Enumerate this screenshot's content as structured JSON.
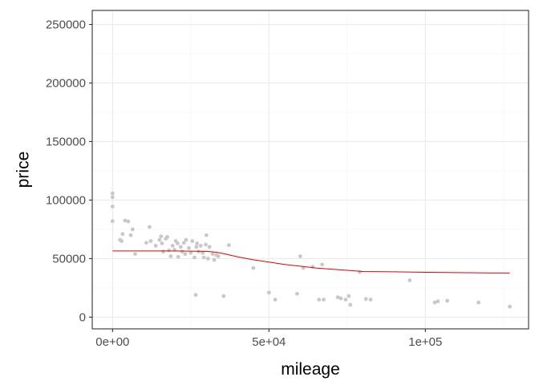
{
  "chart_data": {
    "type": "scatter",
    "xlabel": "mileage",
    "ylabel": "price",
    "xlim": [
      -6500,
      133000
    ],
    "ylim": [
      -10000,
      262000
    ],
    "x_ticks": [
      0,
      50000,
      100000
    ],
    "x_tick_labels": [
      "0e+00",
      "5e+04",
      "1e+05"
    ],
    "y_ticks": [
      0,
      50000,
      100000,
      150000,
      200000,
      250000
    ],
    "y_tick_labels": [
      "0",
      "50000",
      "100000",
      "150000",
      "200000",
      "250000"
    ],
    "x_minor_ticks": [
      25000,
      75000,
      125000
    ],
    "y_minor_ticks": [
      25000,
      75000,
      125000,
      175000,
      225000
    ],
    "grid": true,
    "theme": "bw",
    "colors": {
      "points": "#c8c8c8",
      "fit_line": "#e00000",
      "grid_major": "#ebebeb",
      "grid_minor": "#f5f5f5",
      "panel_border": "#333333"
    },
    "points": [
      {
        "x": 0,
        "y": 105800
      },
      {
        "x": 0,
        "y": 102500
      },
      {
        "x": 0,
        "y": 94500
      },
      {
        "x": 0,
        "y": 82000
      },
      {
        "x": 2400,
        "y": 66000
      },
      {
        "x": 2900,
        "y": 65000
      },
      {
        "x": 3200,
        "y": 71000
      },
      {
        "x": 4000,
        "y": 82500
      },
      {
        "x": 5000,
        "y": 81800
      },
      {
        "x": 5800,
        "y": 70000
      },
      {
        "x": 6400,
        "y": 75000
      },
      {
        "x": 7200,
        "y": 54000
      },
      {
        "x": 10800,
        "y": 63500
      },
      {
        "x": 11800,
        "y": 77000
      },
      {
        "x": 12200,
        "y": 65000
      },
      {
        "x": 13800,
        "y": 61000
      },
      {
        "x": 15000,
        "y": 66000
      },
      {
        "x": 15500,
        "y": 69000
      },
      {
        "x": 15800,
        "y": 63000
      },
      {
        "x": 16200,
        "y": 56000
      },
      {
        "x": 17000,
        "y": 67000
      },
      {
        "x": 17500,
        "y": 68500
      },
      {
        "x": 18000,
        "y": 57000
      },
      {
        "x": 18600,
        "y": 52000
      },
      {
        "x": 19200,
        "y": 61000
      },
      {
        "x": 19800,
        "y": 57500
      },
      {
        "x": 20200,
        "y": 65000
      },
      {
        "x": 20800,
        "y": 63000
      },
      {
        "x": 21000,
        "y": 51500
      },
      {
        "x": 21800,
        "y": 60000
      },
      {
        "x": 22200,
        "y": 56000
      },
      {
        "x": 22800,
        "y": 63500
      },
      {
        "x": 23200,
        "y": 54000
      },
      {
        "x": 23500,
        "y": 66000
      },
      {
        "x": 24400,
        "y": 59000
      },
      {
        "x": 25000,
        "y": 55000
      },
      {
        "x": 25500,
        "y": 65000
      },
      {
        "x": 26200,
        "y": 51000
      },
      {
        "x": 26800,
        "y": 60000
      },
      {
        "x": 27000,
        "y": 63000
      },
      {
        "x": 27500,
        "y": 56000
      },
      {
        "x": 28200,
        "y": 61000
      },
      {
        "x": 28800,
        "y": 55000
      },
      {
        "x": 29200,
        "y": 51000
      },
      {
        "x": 29800,
        "y": 62000
      },
      {
        "x": 30000,
        "y": 70000
      },
      {
        "x": 30500,
        "y": 50000
      },
      {
        "x": 31000,
        "y": 60000
      },
      {
        "x": 32000,
        "y": 54000
      },
      {
        "x": 32500,
        "y": 49000
      },
      {
        "x": 33200,
        "y": 53000
      },
      {
        "x": 33800,
        "y": 52000
      },
      {
        "x": 26600,
        "y": 19000
      },
      {
        "x": 35500,
        "y": 18000
      },
      {
        "x": 37200,
        "y": 61500
      },
      {
        "x": 45000,
        "y": 42000
      },
      {
        "x": 50000,
        "y": 21000
      },
      {
        "x": 52000,
        "y": 15000
      },
      {
        "x": 59000,
        "y": 20000
      },
      {
        "x": 60000,
        "y": 52000
      },
      {
        "x": 61000,
        "y": 42000
      },
      {
        "x": 64000,
        "y": 43000
      },
      {
        "x": 67000,
        "y": 45000
      },
      {
        "x": 66000,
        "y": 15000
      },
      {
        "x": 67500,
        "y": 15000
      },
      {
        "x": 72000,
        "y": 17000
      },
      {
        "x": 73000,
        "y": 16000
      },
      {
        "x": 74500,
        "y": 15000
      },
      {
        "x": 75500,
        "y": 18000
      },
      {
        "x": 76000,
        "y": 10500
      },
      {
        "x": 79000,
        "y": 38500
      },
      {
        "x": 81000,
        "y": 15500
      },
      {
        "x": 82500,
        "y": 15000
      },
      {
        "x": 95000,
        "y": 31500
      },
      {
        "x": 103000,
        "y": 12500
      },
      {
        "x": 104000,
        "y": 13500
      },
      {
        "x": 107000,
        "y": 14000
      },
      {
        "x": 117000,
        "y": 12500
      },
      {
        "x": 127000,
        "y": 9000
      }
    ],
    "fit_line": [
      {
        "x": 0,
        "y": 56500
      },
      {
        "x": 10000,
        "y": 56500
      },
      {
        "x": 20000,
        "y": 56500
      },
      {
        "x": 30000,
        "y": 56200
      },
      {
        "x": 33000,
        "y": 55500
      },
      {
        "x": 36000,
        "y": 54000
      },
      {
        "x": 40000,
        "y": 51500
      },
      {
        "x": 45000,
        "y": 49000
      },
      {
        "x": 50000,
        "y": 47000
      },
      {
        "x": 55000,
        "y": 45000
      },
      {
        "x": 60000,
        "y": 43500
      },
      {
        "x": 65000,
        "y": 42000
      },
      {
        "x": 70000,
        "y": 41000
      },
      {
        "x": 75000,
        "y": 40000
      },
      {
        "x": 80000,
        "y": 39000
      },
      {
        "x": 90000,
        "y": 38700
      },
      {
        "x": 100000,
        "y": 38300
      },
      {
        "x": 110000,
        "y": 38000
      },
      {
        "x": 120000,
        "y": 37800
      },
      {
        "x": 127000,
        "y": 37700
      }
    ]
  }
}
